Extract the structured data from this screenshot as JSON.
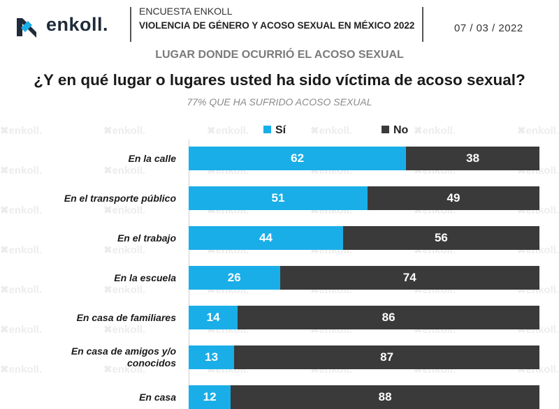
{
  "header": {
    "logo_text": "enkoll.",
    "survey_name": "ENCUESTA ENKOLL",
    "survey_title": "VIOLENCIA DE GÉNERO Y ACOSO SEXUAL EN MÉXICO 2022",
    "date": "07 / 03 / 2022"
  },
  "section_title": "LUGAR DONDE OCURRIÓ EL ACOSO SEXUAL",
  "question": "¿Y en qué lugar o lugares usted ha sido víctima de acoso sexual?",
  "subtitle": "77% QUE HA SUFRIDO ACOSO SEXUAL",
  "watermark_text": "enkoll.",
  "colors": {
    "si": "#1aaee8",
    "no": "#3a3a3a",
    "logo_accent": "#1aaee8"
  },
  "chart_data": {
    "type": "bar",
    "orientation": "horizontal-stacked-100",
    "categories": [
      "En la calle",
      "En el transporte público",
      "En el trabajo",
      "En la escuela",
      "En casa de familiares",
      "En casa de amigos y/o conocidos",
      "En casa"
    ],
    "series": [
      {
        "name": "Sí",
        "color": "#1aaee8",
        "values": [
          62,
          51,
          44,
          26,
          14,
          13,
          12
        ]
      },
      {
        "name": "No",
        "color": "#3a3a3a",
        "values": [
          38,
          49,
          56,
          74,
          86,
          87,
          88
        ]
      }
    ],
    "xlim": [
      0,
      100
    ],
    "legend": "top-center",
    "grid": false
  }
}
